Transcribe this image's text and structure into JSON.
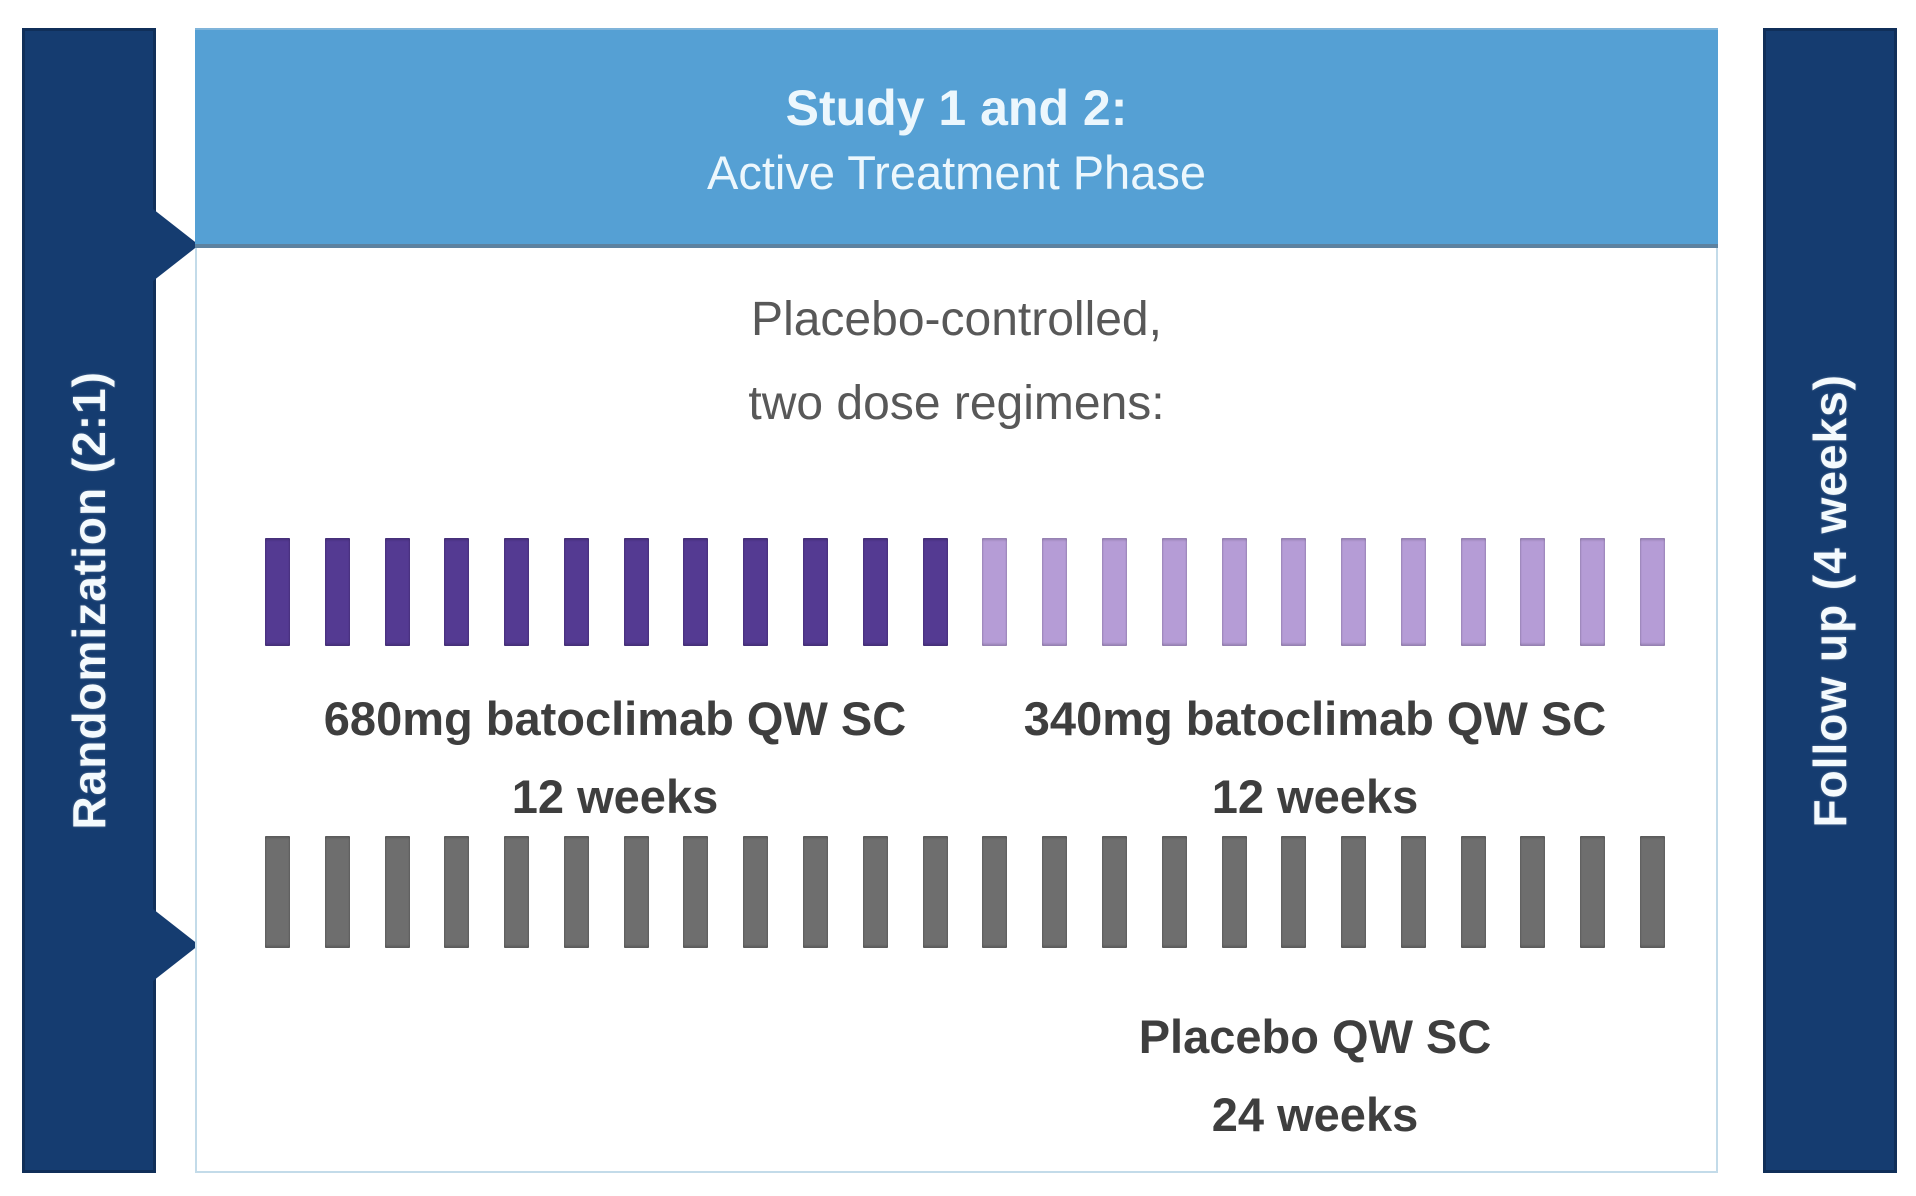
{
  "title": "Batoclimab study design diagram",
  "left_bar": {
    "label": "Randomization (2:1)"
  },
  "right_bar": {
    "label": "Follow up (4 weeks)"
  },
  "header": {
    "line1": "Study 1 and 2:",
    "line2": "Active Treatment Phase"
  },
  "subtitle": {
    "line1": "Placebo-controlled,",
    "line2": "two dose regimens:"
  },
  "arms": [
    {
      "name": "batoclimab-680",
      "dose_label": "680mg batoclimab QW SC",
      "duration_label": "12 weeks",
      "weeks": 12,
      "color_key": "dark_purple"
    },
    {
      "name": "batoclimab-340",
      "dose_label": "340mg batoclimab QW SC",
      "duration_label": "12 weeks",
      "weeks": 12,
      "color_key": "light_purple"
    },
    {
      "name": "placebo",
      "dose_label": "Placebo QW SC",
      "duration_label": "24 weeks",
      "weeks": 24,
      "color_key": "gray"
    }
  ],
  "colors": {
    "navy": "#153c70",
    "header_blue": "#55a0d4",
    "dark_purple": "#543a92",
    "light_purple": "#b59cd6",
    "gray": "#6e6e6e"
  }
}
